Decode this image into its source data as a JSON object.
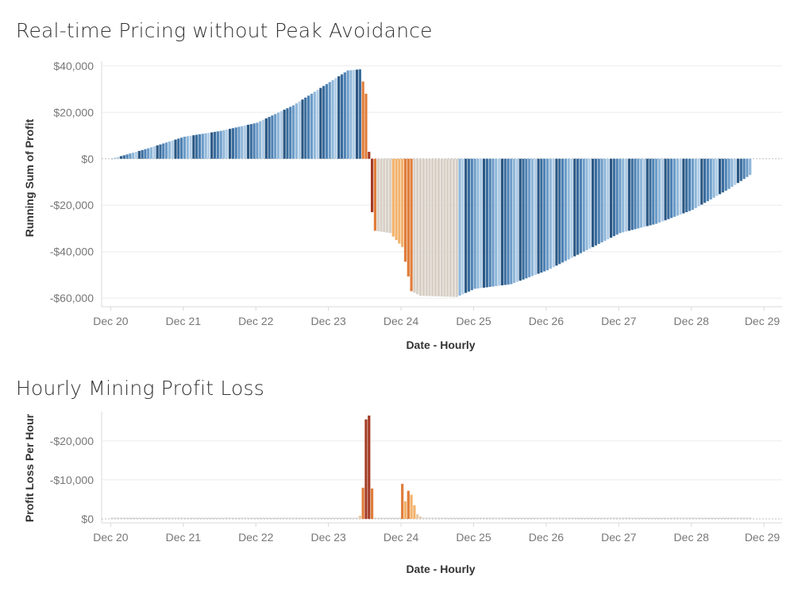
{
  "charts": [
    {
      "title": "Real-time Pricing without Peak Avoidance",
      "type": "bar",
      "xlabel": "Date - Hourly",
      "ylabel": "Running Sum of Profit",
      "x_tick_labels": [
        "Dec 20",
        "Dec 21",
        "Dec 22",
        "Dec 23",
        "Dec 24",
        "Dec 25",
        "Dec 26",
        "Dec 27",
        "Dec 28",
        "Dec 29"
      ],
      "y_tick_labels": [
        "$40,000",
        "$20,000",
        "$0",
        "-$20,000",
        "-$40,000",
        "-$60,000"
      ],
      "y_ticks": [
        40000,
        20000,
        0,
        -20000,
        -40000,
        -60000
      ],
      "ylim": [
        -62000,
        42000
      ],
      "x_start": "Dec 19 21:00",
      "bar_width_hours": 1,
      "hourly_color_ramp": "orange-blue diverging by hourly profit/loss",
      "series": [
        {
          "name": "Running Sum of Profit (hourly, from Dec 20)",
          "key_points": [
            {
              "x": "Dec 20 00:00",
              "y": 0
            },
            {
              "x": "Dec 20 12:00",
              "y": 4500
            },
            {
              "x": "Dec 21 00:00",
              "y": 9500
            },
            {
              "x": "Dec 21 12:00",
              "y": 12000
            },
            {
              "x": "Dec 22 00:00",
              "y": 15500
            },
            {
              "x": "Dec 22 12:00",
              "y": 23000
            },
            {
              "x": "Dec 23 00:00",
              "y": 33000
            },
            {
              "x": "Dec 23 06:00",
              "y": 38000
            },
            {
              "x": "Dec 23 10:00",
              "y": 38500
            },
            {
              "x": "Dec 23 12:00",
              "y": 28000
            },
            {
              "x": "Dec 23 13:00",
              "y": 3000
            },
            {
              "x": "Dec 23 14:00",
              "y": -23000
            },
            {
              "x": "Dec 23 15:00",
              "y": -31000
            },
            {
              "x": "Dec 23 20:00",
              "y": -32000
            },
            {
              "x": "Dec 24 00:00",
              "y": -38000
            },
            {
              "x": "Dec 24 03:00",
              "y": -57000
            },
            {
              "x": "Dec 24 06:00",
              "y": -59000
            },
            {
              "x": "Dec 24 18:00",
              "y": -59500
            },
            {
              "x": "Dec 25 00:00",
              "y": -56000
            },
            {
              "x": "Dec 25 12:00",
              "y": -54000
            },
            {
              "x": "Dec 26 00:00",
              "y": -48000
            },
            {
              "x": "Dec 26 12:00",
              "y": -40000
            },
            {
              "x": "Dec 27 00:00",
              "y": -32000
            },
            {
              "x": "Dec 27 12:00",
              "y": -28000
            },
            {
              "x": "Dec 28 00:00",
              "y": -22000
            },
            {
              "x": "Dec 28 12:00",
              "y": -13000
            },
            {
              "x": "Dec 28 19:00",
              "y": -7000
            }
          ]
        }
      ]
    },
    {
      "title": "Hourly Mining Profit Loss",
      "type": "bar",
      "xlabel": "Date - Hourly",
      "ylabel": "Profit Loss Per Hour",
      "x_tick_labels": [
        "Dec 20",
        "Dec 21",
        "Dec 22",
        "Dec 23",
        "Dec 24",
        "Dec 25",
        "Dec 26",
        "Dec 27",
        "Dec 28",
        "Dec 29"
      ],
      "y_tick_labels": [
        "-$20,000",
        "-$10,000",
        "$0"
      ],
      "y_ticks": [
        -20000,
        -10000,
        0
      ],
      "ylim": [
        -27500,
        0
      ],
      "x_start": "Dec 19 21:00",
      "bar_width_hours": 1,
      "series": [
        {
          "name": "Profit Loss Per Hour",
          "base_value": -300,
          "spikes": [
            {
              "x": "Dec 23 10:00",
              "y": -800
            },
            {
              "x": "Dec 23 11:00",
              "y": -8000
            },
            {
              "x": "Dec 23 12:00",
              "y": -25500
            },
            {
              "x": "Dec 23 13:00",
              "y": -26500
            },
            {
              "x": "Dec 23 14:00",
              "y": -7800
            },
            {
              "x": "Dec 24 00:00",
              "y": -9000
            },
            {
              "x": "Dec 24 01:00",
              "y": -4500
            },
            {
              "x": "Dec 24 02:00",
              "y": -7200
            },
            {
              "x": "Dec 24 03:00",
              "y": -6200
            },
            {
              "x": "Dec 24 04:00",
              "y": -3500
            },
            {
              "x": "Dec 24 05:00",
              "y": -1200
            },
            {
              "x": "Dec 24 06:00",
              "y": -600
            }
          ]
        }
      ]
    }
  ]
}
